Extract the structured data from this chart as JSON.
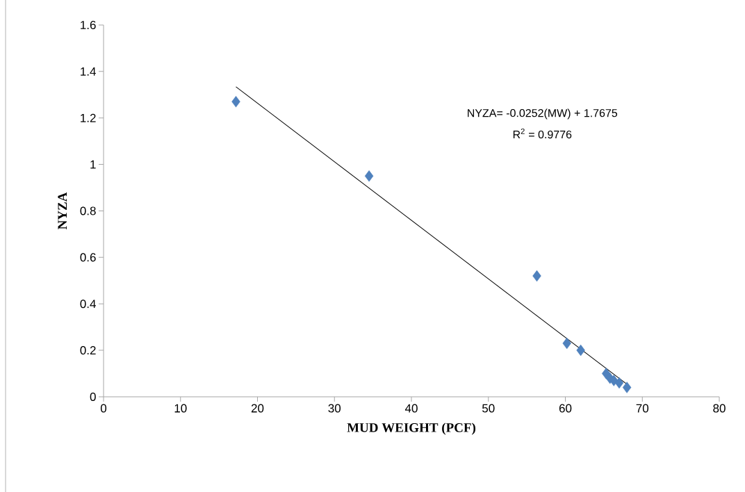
{
  "chart_data": {
    "type": "scatter",
    "xlabel": "MUD WEIGHT  (PCF)",
    "ylabel": "NYZA",
    "annotations": [
      "NYZA= -0.0252(MW) + 1.7675",
      "R$^{2}$ = 0.9776"
    ],
    "xlim": [
      0,
      80
    ],
    "xticks": [
      0,
      10,
      20,
      30,
      40,
      50,
      60,
      70,
      80
    ],
    "ylim": [
      0,
      1.6
    ],
    "yticks": [
      0,
      0.2,
      0.4,
      0.6,
      0.8,
      1,
      1.2,
      1.4,
      1.6
    ],
    "series": [
      {
        "marker": "diamond",
        "color": "#4f81bd",
        "x": [
          17.2,
          34.5,
          56.3,
          60.2,
          62,
          65.3,
          65.8,
          66.3,
          67,
          68
        ],
        "values": [
          1.27,
          0.95,
          0.52,
          0.23,
          0.2,
          0.1,
          0.08,
          0.07,
          0.06,
          0.04
        ]
      },
      {
        "type": "line",
        "marker": "none",
        "color": "#000000",
        "x": [
          17.2,
          68
        ],
        "values": [
          1.334,
          0.054
        ]
      }
    ]
  }
}
